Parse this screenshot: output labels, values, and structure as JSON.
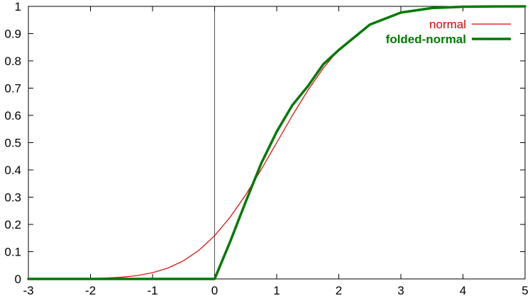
{
  "chart_data": {
    "type": "line",
    "title": "",
    "xlabel": "",
    "ylabel": "",
    "xlim": [
      -3,
      5
    ],
    "ylim": [
      0,
      1
    ],
    "x_ticks": [
      "-3",
      "-2",
      "-1",
      "0",
      "1",
      "2",
      "3",
      "4",
      "5"
    ],
    "y_ticks": [
      "0",
      "0.1",
      "0.2",
      "0.3",
      "0.4",
      "0.5",
      "0.6",
      "0.7",
      "0.8",
      "0.9",
      "1"
    ],
    "grid": false,
    "vertical_reference_line_x": 0,
    "legend_position": "top-right",
    "series": [
      {
        "name": "normal",
        "color": "#e00000",
        "style": "thin",
        "x": [
          -3,
          -2.5,
          -2,
          -1.75,
          -1.5,
          -1.25,
          -1,
          -0.75,
          -0.5,
          -0.25,
          0,
          0.25,
          0.5,
          0.75,
          1,
          1.25,
          1.5,
          1.75,
          2,
          2.5,
          3,
          3.5,
          4,
          4.5,
          5
        ],
        "y": [
          0.0,
          0.0,
          0.0013,
          0.0038,
          0.0062,
          0.0122,
          0.0228,
          0.0401,
          0.0668,
          0.1056,
          0.1587,
          0.2266,
          0.3085,
          0.4013,
          0.5,
          0.5987,
          0.6915,
          0.7734,
          0.8413,
          0.9332,
          0.9772,
          0.9938,
          0.9987,
          0.9998,
          1.0
        ]
      },
      {
        "name": "folded-normal",
        "color": "#007a00",
        "style": "thick",
        "x": [
          -3,
          -2,
          -1,
          0,
          0.25,
          0.5,
          0.75,
          1,
          1.25,
          1.5,
          1.75,
          2,
          2.5,
          3,
          3.5,
          4,
          4.5,
          5
        ],
        "y": [
          0,
          0,
          0,
          0,
          0.1367,
          0.2828,
          0.4236,
          0.5404,
          0.6368,
          0.7066,
          0.7875,
          0.84,
          0.933,
          0.9772,
          0.9938,
          0.9987,
          0.9998,
          1.0
        ]
      }
    ]
  }
}
